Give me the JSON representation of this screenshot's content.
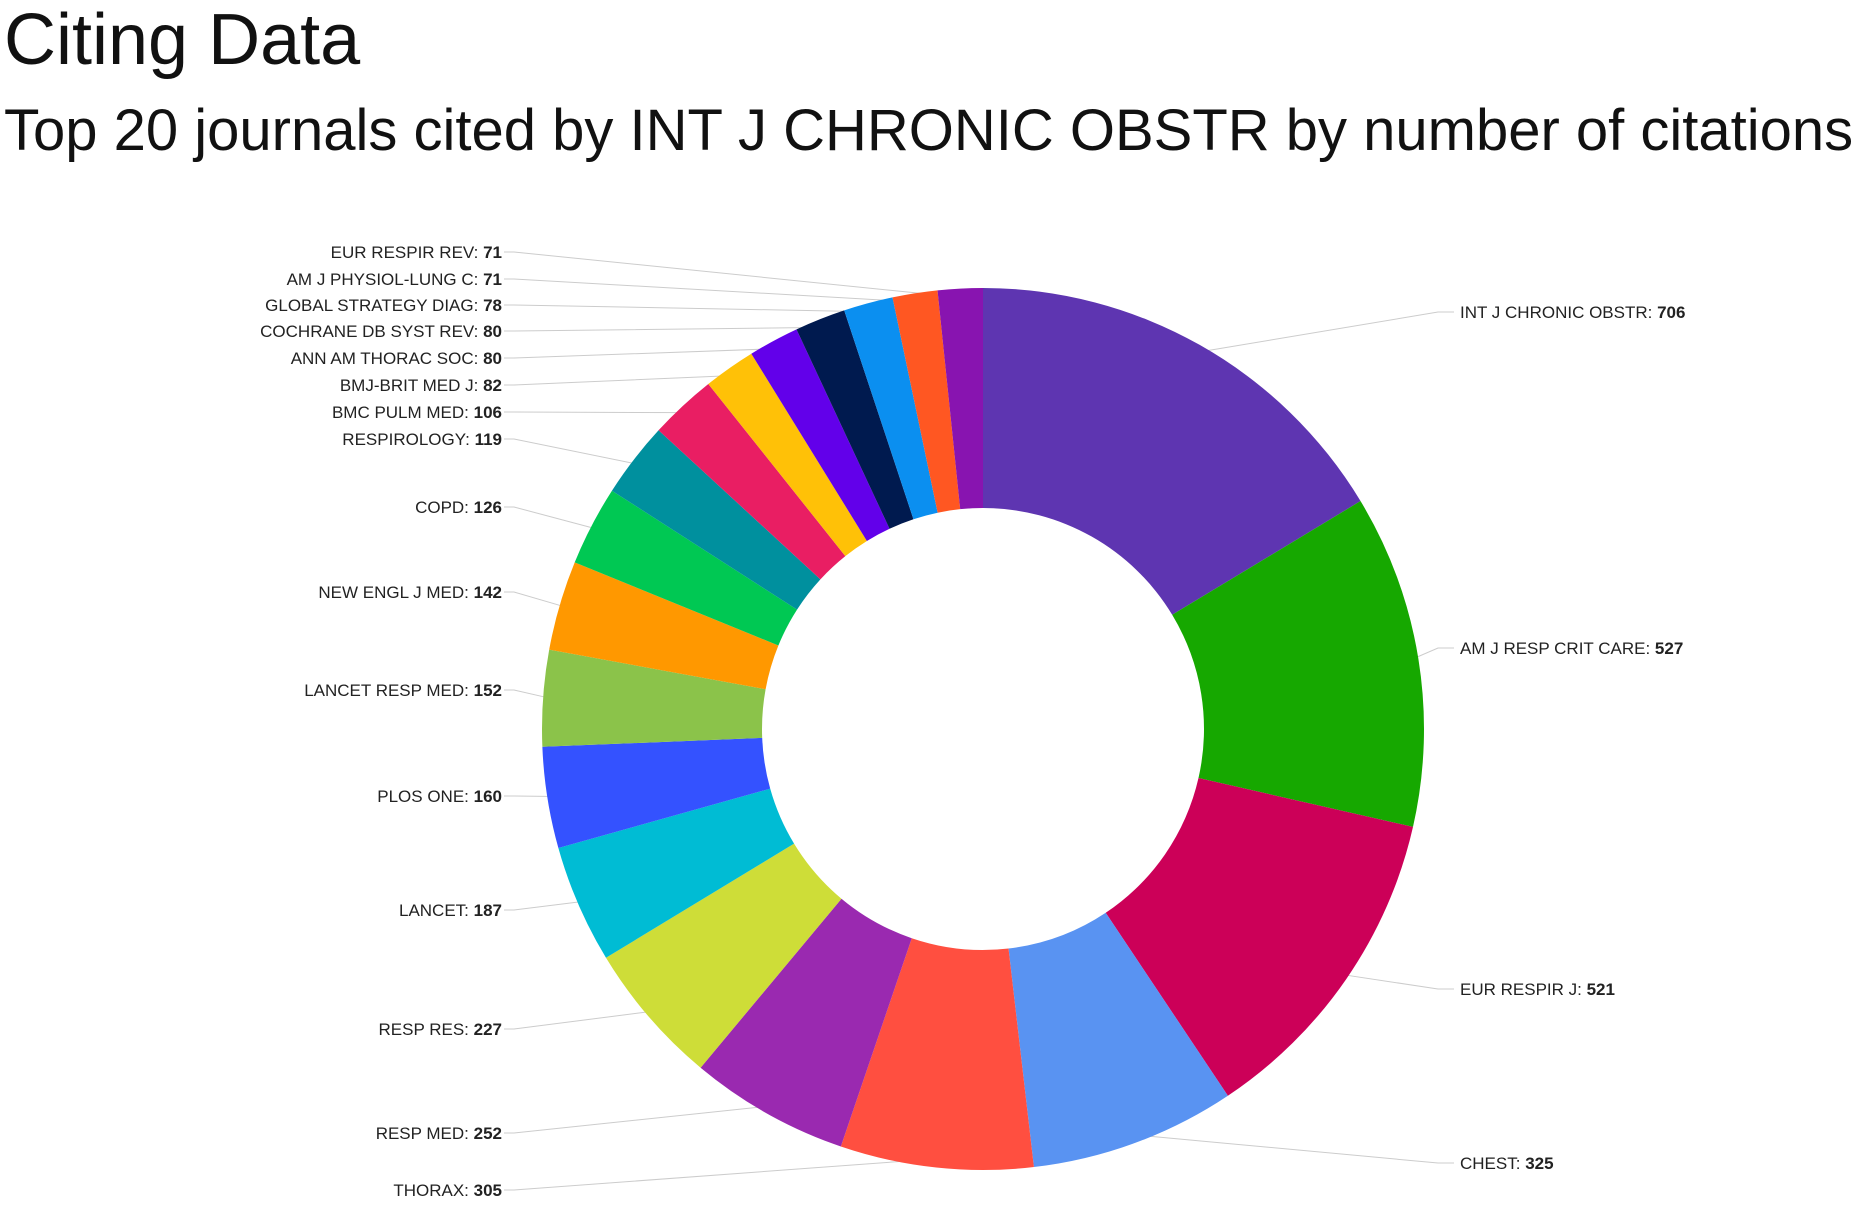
{
  "title": "Citing Data",
  "subtitle": "Top 20 journals cited by INT J CHRONIC OBSTR by number of citations",
  "chart_data": {
    "type": "pie",
    "donut": true,
    "title": "Citing Data",
    "subtitle": "Top 20 journals cited by INT J CHRONIC OBSTR by number of citations",
    "categories": [
      "INT J CHRONIC OBSTR",
      "AM J RESP CRIT CARE",
      "EUR RESPIR J",
      "CHEST",
      "THORAX",
      "RESP MED",
      "RESP RES",
      "LANCET",
      "PLOS ONE",
      "LANCET RESP MED",
      "NEW ENGL J MED",
      "COPD",
      "RESPIROLOGY",
      "BMC PULM MED",
      "BMJ-BRIT MED J",
      "ANN AM THORAC SOC",
      "COCHRANE DB SYST REV",
      "GLOBAL STRATEGY DIAG",
      "AM J PHYSIOL-LUNG C",
      "EUR RESPIR REV"
    ],
    "values": [
      706,
      527,
      521,
      325,
      305,
      252,
      227,
      187,
      160,
      152,
      142,
      126,
      119,
      106,
      82,
      80,
      80,
      78,
      71,
      71
    ],
    "colors": [
      "#5e35b1",
      "#16a800",
      "#cc0058",
      "#5993f2",
      "#ff4f40",
      "#9a29b0",
      "#cedd38",
      "#00bcd4",
      "#3452ff",
      "#8bc34a",
      "#ff9800",
      "#00c853",
      "#00909e",
      "#e91e63",
      "#ffc107",
      "#6200ea",
      "#001a4f",
      "#0b8ff0",
      "#ff5722",
      "#8814b0"
    ],
    "legend": "labels beside slices",
    "label_format": "NAME: VALUE"
  }
}
